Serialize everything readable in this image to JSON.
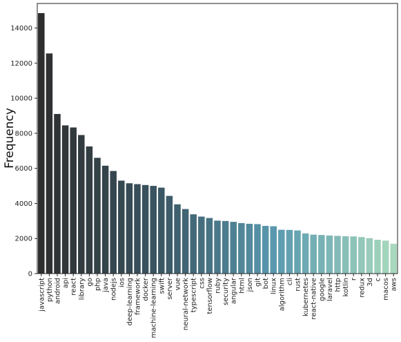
{
  "chart_data": {
    "type": "bar",
    "title": "",
    "xlabel": "",
    "ylabel": "Frequency",
    "ylim": [
      0,
      15400
    ],
    "yticks": [
      0,
      2000,
      4000,
      6000,
      8000,
      10000,
      12000,
      14000
    ],
    "grid": false,
    "legend": "none",
    "color_gradient": [
      "#2e2e2e",
      "#3a5562",
      "#5a9ab0",
      "#a8d8bd"
    ],
    "categories": [
      "javascript",
      "python",
      "android",
      "api",
      "react",
      "library",
      "go",
      "php",
      "java",
      "nodejs",
      "ios",
      "deep-learning",
      "framework",
      "docker",
      "machine-learning",
      "swift",
      "server",
      "vue",
      "neural-network",
      "typescript",
      "css",
      "tensorflow",
      "ruby",
      "security",
      "angular",
      "html",
      "json",
      "git",
      "bot",
      "linux",
      "algorithm",
      "cli",
      "rust",
      "kubernetes",
      "react-native",
      "google",
      "laravel",
      "http",
      "kotlin",
      "r",
      "redux",
      "3d",
      "c",
      "macos",
      "aws"
    ],
    "values": [
      14850,
      12550,
      9100,
      8450,
      8330,
      7900,
      7250,
      6600,
      6150,
      5850,
      5300,
      5150,
      5100,
      5050,
      5000,
      4900,
      4430,
      3950,
      3680,
      3380,
      3250,
      3170,
      3020,
      3000,
      2950,
      2880,
      2840,
      2820,
      2720,
      2700,
      2500,
      2490,
      2460,
      2290,
      2220,
      2200,
      2170,
      2150,
      2130,
      2120,
      2080,
      2020,
      1930,
      1880,
      1700
    ]
  }
}
